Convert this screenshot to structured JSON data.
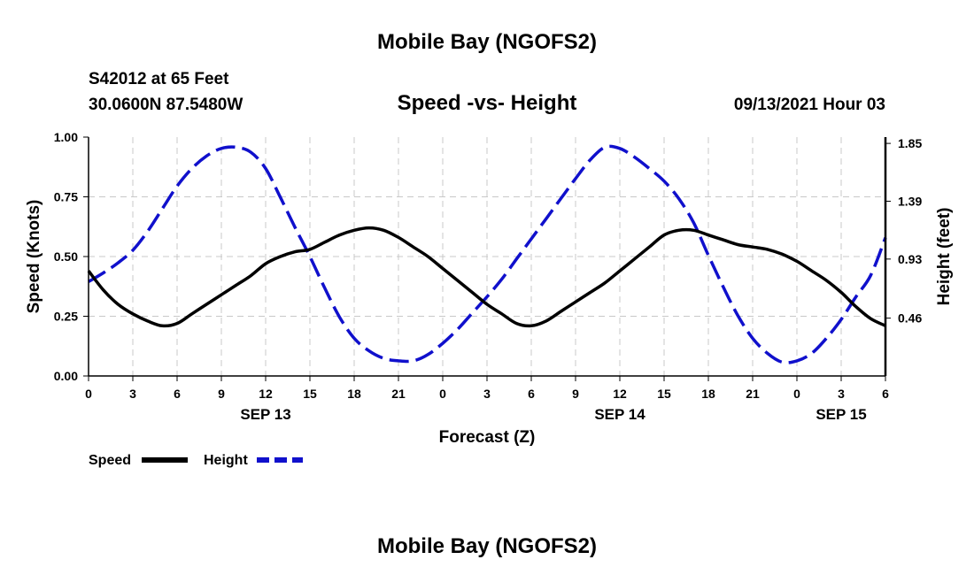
{
  "header": {
    "title_top": "Mobile Bay (NGOFS2)",
    "station": "S42012 at 65 Feet",
    "coords": "30.0600N  87.5480W",
    "date": "09/13/2021 Hour 03",
    "title_bottom": "Mobile Bay (NGOFS2)"
  },
  "chart_data": {
    "type": "line",
    "title": "Speed -vs- Height",
    "xlabel": "Forecast (Z)",
    "ylabel": "Speed (Knots)",
    "y2label": "Height (feet)",
    "x_hours_range": [
      0,
      54
    ],
    "x_ticks": [
      0,
      3,
      6,
      9,
      12,
      15,
      18,
      21,
      24,
      27,
      30,
      33,
      36,
      39,
      42,
      45,
      48,
      51,
      54
    ],
    "x_tick_labels": [
      "0",
      "3",
      "6",
      "9",
      "12",
      "15",
      "18",
      "21",
      "0",
      "3",
      "6",
      "9",
      "12",
      "15",
      "18",
      "21",
      "0",
      "3",
      "6"
    ],
    "date_labels": [
      {
        "hour": 12,
        "text": "SEP 13"
      },
      {
        "hour": 36,
        "text": "SEP 14"
      },
      {
        "hour": 51,
        "text": "SEP 15"
      }
    ],
    "ylim": [
      0,
      1
    ],
    "y_ticks": [
      0,
      0.25,
      0.5,
      0.75,
      1.0
    ],
    "y_tick_labels": [
      "0.00",
      "0.25",
      "0.50",
      "0.75",
      "1.00"
    ],
    "y2lim": [
      0.0,
      1.9
    ],
    "y2_ticks": [
      0.46,
      0.93,
      1.39,
      1.85
    ],
    "y2_tick_labels": [
      "0.46",
      "0.93",
      "1.39",
      "1.85"
    ],
    "grid": true,
    "series": [
      {
        "name": "Speed",
        "axis": "left",
        "color": "#000000",
        "style": "solid",
        "x": [
          0,
          1,
          2,
          3,
          4,
          5,
          6,
          7,
          8,
          9,
          10,
          11,
          12,
          13,
          14,
          15,
          16,
          17,
          18,
          19,
          20,
          21,
          22,
          23,
          24,
          25,
          26,
          27,
          28,
          29,
          30,
          31,
          32,
          33,
          34,
          35,
          36,
          37,
          38,
          39,
          40,
          41,
          42,
          43,
          44,
          45,
          46,
          47,
          48,
          49,
          50,
          51,
          52,
          53,
          54
        ],
        "values": [
          0.44,
          0.36,
          0.3,
          0.26,
          0.23,
          0.21,
          0.22,
          0.26,
          0.3,
          0.34,
          0.38,
          0.42,
          0.47,
          0.5,
          0.52,
          0.53,
          0.56,
          0.59,
          0.61,
          0.62,
          0.61,
          0.58,
          0.54,
          0.5,
          0.45,
          0.4,
          0.35,
          0.3,
          0.26,
          0.22,
          0.21,
          0.23,
          0.27,
          0.31,
          0.35,
          0.39,
          0.44,
          0.49,
          0.54,
          0.59,
          0.61,
          0.61,
          0.59,
          0.57,
          0.55,
          0.54,
          0.53,
          0.51,
          0.48,
          0.44,
          0.4,
          0.35,
          0.29,
          0.24,
          0.21
        ]
      },
      {
        "name": "Height",
        "axis": "right",
        "color": "#1010cc",
        "style": "dashed",
        "x": [
          0,
          1,
          2,
          3,
          4,
          5,
          6,
          7,
          8,
          9,
          10,
          11,
          12,
          13,
          14,
          15,
          16,
          17,
          18,
          19,
          20,
          21,
          22,
          23,
          24,
          25,
          26,
          27,
          28,
          29,
          30,
          31,
          32,
          33,
          34,
          35,
          36,
          37,
          38,
          39,
          40,
          41,
          42,
          43,
          44,
          45,
          46,
          47,
          48,
          49,
          50,
          51,
          52,
          53,
          54
        ],
        "values": [
          0.75,
          0.82,
          0.9,
          1.0,
          1.15,
          1.33,
          1.51,
          1.65,
          1.75,
          1.81,
          1.82,
          1.78,
          1.65,
          1.42,
          1.18,
          0.95,
          0.7,
          0.47,
          0.3,
          0.2,
          0.14,
          0.12,
          0.12,
          0.17,
          0.26,
          0.37,
          0.5,
          0.63,
          0.77,
          0.93,
          1.09,
          1.25,
          1.41,
          1.57,
          1.72,
          1.82,
          1.81,
          1.74,
          1.65,
          1.55,
          1.41,
          1.22,
          0.96,
          0.71,
          0.48,
          0.3,
          0.18,
          0.11,
          0.12,
          0.18,
          0.3,
          0.45,
          0.63,
          0.8,
          1.1
        ]
      }
    ],
    "legend": [
      {
        "label": "Speed",
        "color": "#000000",
        "style": "solid"
      },
      {
        "label": "Height",
        "color": "#1010cc",
        "style": "dashed"
      }
    ]
  }
}
